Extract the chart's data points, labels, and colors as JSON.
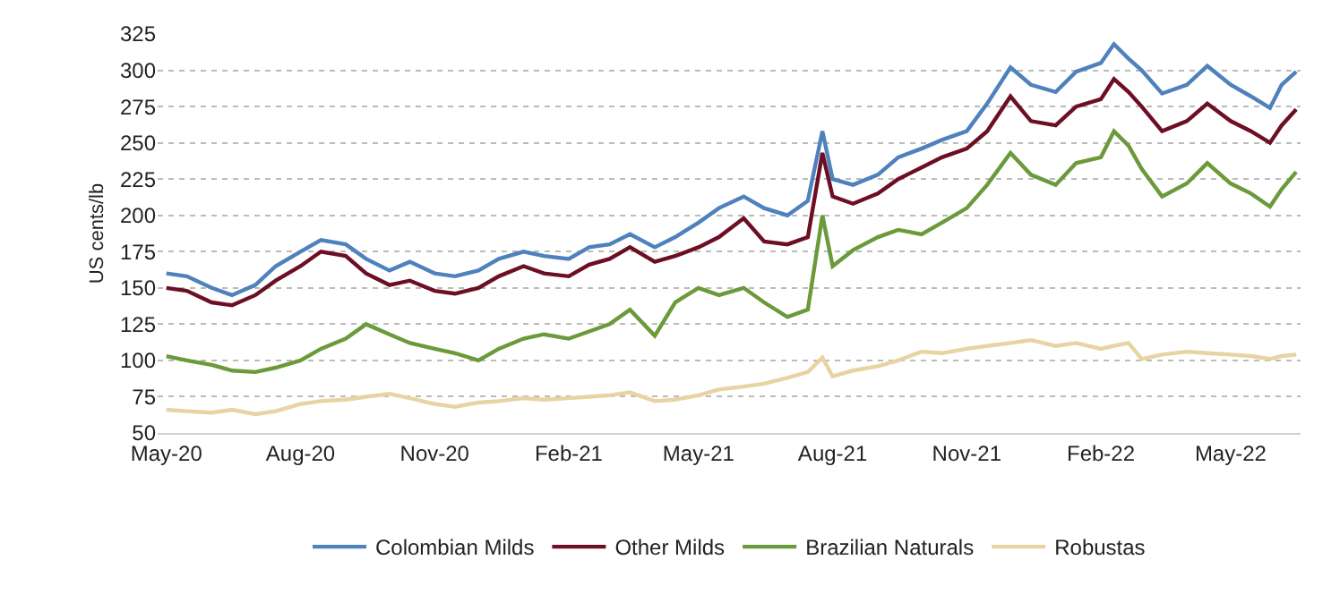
{
  "chart_data": {
    "type": "line",
    "ylabel": "US cents/lb",
    "x": [
      "2020-05-01",
      "2020-05-15",
      "2020-06-01",
      "2020-06-15",
      "2020-07-01",
      "2020-07-15",
      "2020-08-01",
      "2020-08-15",
      "2020-09-01",
      "2020-09-15",
      "2020-10-01",
      "2020-10-15",
      "2020-11-01",
      "2020-11-15",
      "2020-12-01",
      "2020-12-15",
      "2021-01-01",
      "2021-01-15",
      "2021-02-01",
      "2021-02-15",
      "2021-03-01",
      "2021-03-15",
      "2021-04-01",
      "2021-04-15",
      "2021-05-01",
      "2021-05-15",
      "2021-06-01",
      "2021-06-15",
      "2021-07-01",
      "2021-07-15",
      "2021-07-25",
      "2021-08-01",
      "2021-08-15",
      "2021-09-01",
      "2021-09-15",
      "2021-10-01",
      "2021-10-15",
      "2021-11-01",
      "2021-11-15",
      "2021-12-01",
      "2021-12-15",
      "2022-01-01",
      "2022-01-15",
      "2022-02-01",
      "2022-02-10",
      "2022-02-20",
      "2022-03-01",
      "2022-03-15",
      "2022-04-01",
      "2022-04-15",
      "2022-05-01",
      "2022-05-15",
      "2022-05-28",
      "2022-06-05",
      "2022-06-15"
    ],
    "series": [
      {
        "name": "Colombian Milds",
        "color": "#4f81bd",
        "values": [
          160,
          158,
          150,
          145,
          152,
          165,
          175,
          183,
          180,
          170,
          162,
          168,
          160,
          158,
          162,
          170,
          175,
          172,
          170,
          178,
          180,
          187,
          178,
          185,
          195,
          205,
          213,
          205,
          200,
          210,
          258,
          225,
          221,
          228,
          240,
          246,
          252,
          258,
          277,
          302,
          290,
          285,
          299,
          305,
          318,
          308,
          300,
          284,
          290,
          303,
          290,
          282,
          274,
          290,
          299
        ]
      },
      {
        "name": "Other Milds",
        "color": "#6d0f24",
        "values": [
          150,
          148,
          140,
          138,
          145,
          155,
          165,
          175,
          172,
          160,
          152,
          155,
          148,
          146,
          150,
          158,
          165,
          160,
          158,
          166,
          170,
          178,
          168,
          172,
          178,
          185,
          198,
          182,
          180,
          185,
          243,
          213,
          208,
          215,
          225,
          233,
          240,
          246,
          258,
          282,
          265,
          262,
          275,
          280,
          294,
          285,
          275,
          258,
          265,
          277,
          265,
          258,
          250,
          262,
          273
        ]
      },
      {
        "name": "Brazilian Naturals",
        "color": "#6a9a3a",
        "values": [
          103,
          100,
          97,
          93,
          92,
          95,
          100,
          108,
          115,
          125,
          118,
          112,
          108,
          105,
          100,
          108,
          115,
          118,
          115,
          120,
          125,
          135,
          117,
          140,
          150,
          145,
          150,
          140,
          130,
          135,
          200,
          165,
          176,
          185,
          190,
          187,
          195,
          205,
          221,
          243,
          228,
          221,
          236,
          240,
          258,
          248,
          232,
          213,
          222,
          236,
          222,
          215,
          206,
          218,
          230
        ]
      },
      {
        "name": "Robustas",
        "color": "#e8d3a2",
        "values": [
          66,
          65,
          64,
          66,
          63,
          65,
          70,
          72,
          73,
          75,
          77,
          74,
          70,
          68,
          71,
          72,
          74,
          73,
          74,
          75,
          76,
          78,
          72,
          73,
          76,
          80,
          82,
          84,
          88,
          92,
          102,
          89,
          93,
          96,
          100,
          106,
          105,
          108,
          110,
          112,
          114,
          110,
          112,
          108,
          110,
          112,
          101,
          104,
          106,
          105,
          104,
          103,
          101,
          103,
          104
        ]
      }
    ],
    "xlim": [
      "2020-04-25",
      "2022-06-18"
    ],
    "xticks": [
      {
        "value": "2020-05-01",
        "label": "May-20"
      },
      {
        "value": "2020-08-01",
        "label": "Aug-20"
      },
      {
        "value": "2020-11-01",
        "label": "Nov-20"
      },
      {
        "value": "2021-02-01",
        "label": "Feb-21"
      },
      {
        "value": "2021-05-01",
        "label": "May-21"
      },
      {
        "value": "2021-08-01",
        "label": "Aug-21"
      },
      {
        "value": "2021-11-01",
        "label": "Nov-21"
      },
      {
        "value": "2022-02-01",
        "label": "Feb-22"
      },
      {
        "value": "2022-05-01",
        "label": "May-22"
      }
    ],
    "ylim": [
      50,
      325
    ],
    "yticks": [
      50,
      75,
      100,
      125,
      150,
      175,
      200,
      225,
      250,
      275,
      300,
      325
    ],
    "grid": "y",
    "legend": "bottom",
    "marker": "none",
    "line_style": "solid"
  }
}
